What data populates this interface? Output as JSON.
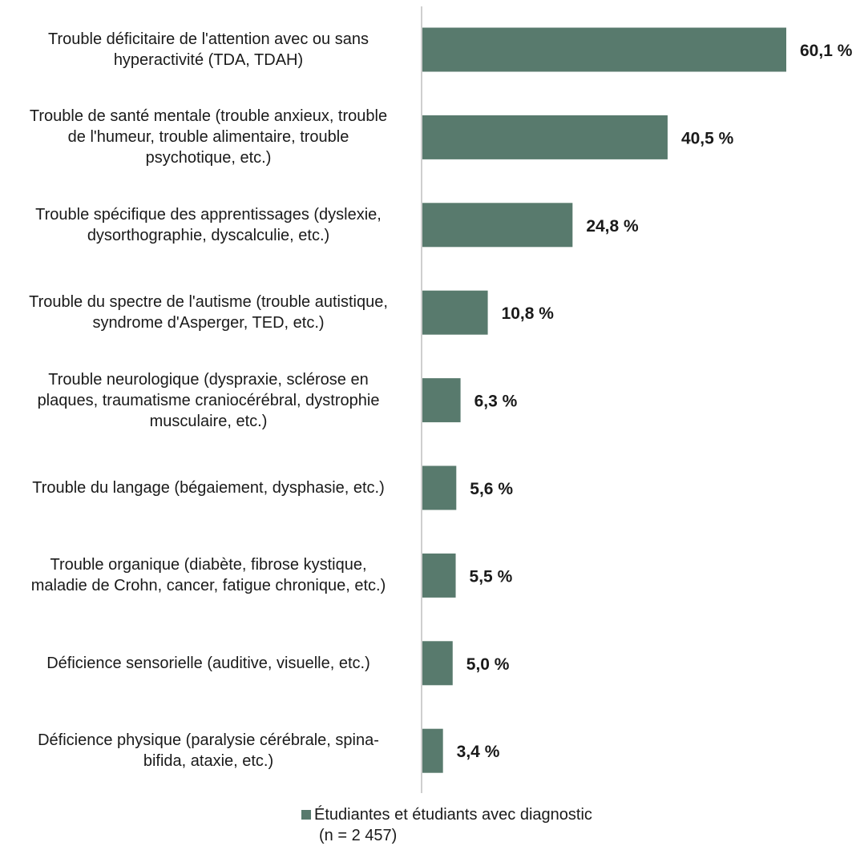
{
  "chart_data": {
    "type": "bar",
    "orientation": "horizontal",
    "categories": [
      "Trouble déficitaire de l'attention avec ou sans hyperactivité (TDA, TDAH)",
      "Trouble de santé mentale (trouble anxieux, trouble de l'humeur, trouble alimentaire, trouble psychotique, etc.)",
      "Trouble spécifique des apprentissages (dyslexie, dysorthographie, dyscalculie, etc.)",
      "Trouble du spectre de l'autisme (trouble autistique, syndrome d'Asperger, TED, etc.)",
      "Trouble neurologique (dyspraxie, sclérose en plaques, traumatisme craniocérébral, dystrophie musculaire, etc.)",
      "Trouble du langage (bégaiement, dysphasie, etc.)",
      "Trouble organique (diabète, fibrose kystique, maladie de Crohn, cancer, fatigue chronique, etc.)",
      "Déficience sensorielle (auditive, visuelle, etc.)",
      "Déficience physique (paralysie cérébrale, spina-bifida, ataxie, etc.)"
    ],
    "label_lines": [
      [
        "Trouble déficitaire de l'attention avec ou sans",
        "hyperactivité (TDA, TDAH)"
      ],
      [
        "Trouble de santé mentale (trouble anxieux, trouble",
        "de l'humeur, trouble alimentaire, trouble",
        "psychotique, etc.)"
      ],
      [
        "Trouble spécifique des apprentissages (dyslexie,",
        "dysorthographie, dyscalculie, etc.)"
      ],
      [
        "Trouble du spectre de l'autisme (trouble autistique,",
        "syndrome d'Asperger, TED, etc.)"
      ],
      [
        "Trouble neurologique (dyspraxie, sclérose en",
        "plaques, traumatisme craniocérébral, dystrophie",
        "musculaire, etc.)"
      ],
      [
        "Trouble du langage (bégaiement, dysphasie, etc.)"
      ],
      [
        "Trouble organique (diabète, fibrose kystique,",
        "maladie de Crohn, cancer, fatigue chronique, etc.)"
      ],
      [
        "Déficience sensorielle (auditive, visuelle, etc.)"
      ],
      [
        "Déficience physique (paralysie cérébrale, spina-",
        "bifida, ataxie, etc.)"
      ]
    ],
    "series": [
      {
        "name": "Étudiantes et étudiants avec diagnostic (n = 2 457)",
        "values": [
          60.1,
          40.5,
          24.8,
          10.8,
          6.3,
          5.6,
          5.5,
          5.0,
          3.4
        ],
        "data_labels": [
          "60,1 %",
          "40,5 %",
          "24,8 %",
          "10,8 %",
          "6,3 %",
          "5,6 %",
          "5,5 %",
          "5,0 %",
          "3,4 %"
        ],
        "color": "#587a6d"
      }
    ],
    "xlim": [
      0,
      60.1
    ],
    "grid": false,
    "legend": {
      "position": "bottom",
      "line1": "Étudiantes et étudiants avec diagnostic",
      "line2": "(n = 2 457)"
    },
    "axis_color": "#bfbfbf"
  }
}
